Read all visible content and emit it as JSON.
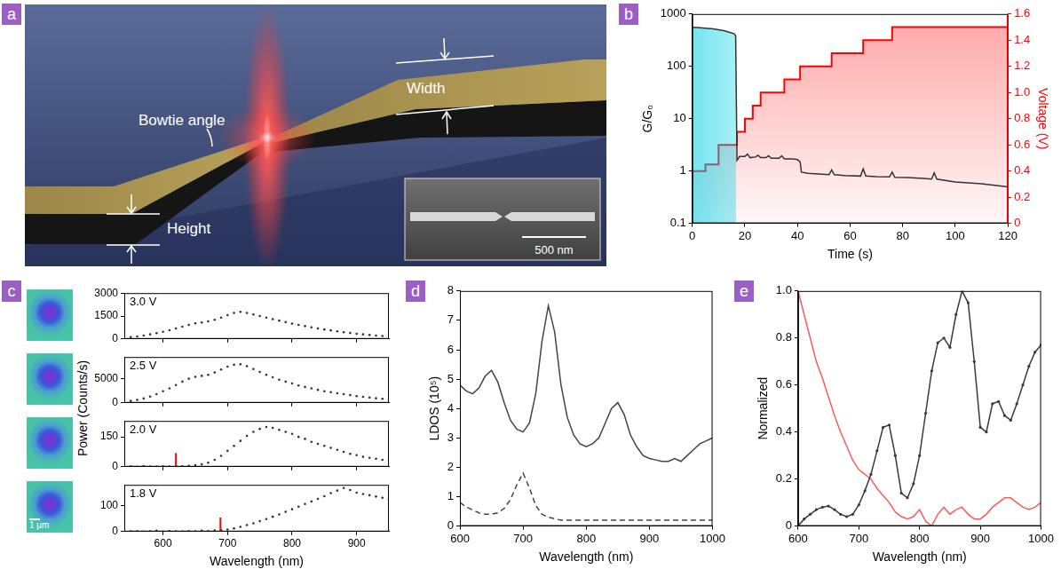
{
  "diagram": {
    "panel": "a",
    "labels": {
      "bowtie_angle": "Bowtie angle",
      "width": "Width",
      "height": "Height"
    },
    "inset_scale_bar": "500 nm"
  },
  "images": {
    "panel": "c",
    "scale_bar": "1 μm"
  },
  "chart_data": [
    {
      "panel": "b",
      "type": "line",
      "x_label": "Time (s)",
      "y_label": "G/G₀",
      "y2_label": "Voltage (V)",
      "log": "y",
      "grid": false,
      "xlim": [
        0,
        120
      ],
      "xticks": [
        0,
        20,
        40,
        60,
        80,
        100,
        120
      ],
      "ylim": [
        0.1,
        1000
      ],
      "yticks": [
        0.1,
        1,
        10,
        100,
        1000
      ],
      "y2lim": [
        0,
        1.6
      ],
      "y2ticks": [
        0,
        0.2,
        0.4,
        0.6,
        0.8,
        {
          "value": 1,
          "label": "1.0"
        },
        1.2,
        1.4,
        1.6
      ],
      "series": [
        {
          "color": "#333333",
          "x": [
            0,
            2,
            4,
            6,
            8,
            10,
            12,
            14,
            16,
            16.5,
            17,
            18,
            20,
            21,
            22,
            24,
            25,
            26,
            28,
            29,
            30,
            33,
            34,
            35,
            38,
            40,
            41,
            41.5,
            44,
            48,
            52,
            53,
            54,
            58,
            64,
            65,
            66,
            70,
            75,
            76,
            77,
            82,
            88,
            91,
            92,
            93,
            100,
            110,
            120
          ],
          "values": [
            560,
            550,
            540,
            530,
            520,
            500,
            480,
            450,
            420,
            380,
            1.6,
            1.9,
            1.9,
            2.1,
            1.8,
            1.85,
            2.0,
            1.8,
            1.8,
            1.95,
            1.75,
            1.75,
            1.95,
            1.7,
            1.7,
            1.65,
            1.5,
            0.95,
            0.9,
            0.88,
            0.85,
            1.05,
            0.85,
            0.82,
            0.8,
            1.1,
            0.8,
            0.78,
            0.77,
            0.95,
            0.76,
            0.75,
            0.72,
            0.7,
            0.92,
            0.7,
            0.62,
            0.57,
            0.5
          ]
        },
        {
          "color": "#ff0000",
          "axis": "y2",
          "line_style": "step",
          "x": [
            0,
            5,
            10,
            17,
            20,
            23,
            26,
            35,
            41,
            53,
            65,
            76,
            92,
            120
          ],
          "values": [
            0.3,
            0.4,
            0.45,
            0.6,
            0.7,
            0.8,
            0.9,
            1.0,
            1.1,
            1.2,
            1.3,
            1.4,
            1.5,
            1.5
          ]
        }
      ]
    },
    {
      "panel": "c",
      "type": "scatter",
      "marker": "dot",
      "title": "3.0 V",
      "y_label": "Power (Counts/s)",
      "tick_labels": "y",
      "grid": false,
      "xlim": [
        540,
        950
      ],
      "xticks": [
        600,
        700,
        800,
        900
      ],
      "ylim": [
        0,
        3000
      ],
      "yticks": [
        0,
        1500,
        3000
      ],
      "x": [
        550,
        560,
        570,
        580,
        590,
        600,
        610,
        620,
        630,
        640,
        650,
        660,
        670,
        680,
        690,
        700,
        710,
        720,
        730,
        740,
        750,
        760,
        770,
        780,
        790,
        800,
        810,
        820,
        830,
        840,
        850,
        860,
        870,
        880,
        890,
        900,
        910,
        920,
        930,
        940,
        950
      ],
      "series": [
        {
          "color": "#333333",
          "values": [
            120,
            160,
            220,
            300,
            380,
            470,
            570,
            680,
            800,
            920,
            1020,
            1080,
            1150,
            1250,
            1400,
            1560,
            1700,
            1780,
            1700,
            1600,
            1500,
            1400,
            1300,
            1200,
            1100,
            1000,
            920,
            840,
            760,
            680,
            620,
            560,
            500,
            440,
            390,
            340,
            300,
            260,
            220,
            190,
            160
          ]
        }
      ]
    },
    {
      "panel": "c",
      "type": "scatter",
      "marker": "dot",
      "title": "2.5 V",
      "tick_labels": "y",
      "grid": false,
      "xlim": [
        540,
        950
      ],
      "xticks": [
        600,
        700,
        800,
        900
      ],
      "ylim": [
        0,
        9500
      ],
      "yticks": [
        0,
        5000
      ],
      "x": [
        550,
        560,
        570,
        580,
        590,
        600,
        610,
        620,
        630,
        640,
        650,
        660,
        670,
        680,
        690,
        700,
        710,
        720,
        730,
        740,
        750,
        760,
        770,
        780,
        790,
        800,
        810,
        820,
        830,
        840,
        850,
        860,
        870,
        880,
        890,
        900,
        910,
        920,
        930,
        940,
        950
      ],
      "series": [
        {
          "color": "#333333",
          "values": [
            400,
            600,
            900,
            1300,
            1800,
            2400,
            3000,
            3700,
            4400,
            5000,
            5400,
            5600,
            5800,
            6300,
            6900,
            7500,
            7900,
            8000,
            7600,
            7000,
            6400,
            5800,
            5300,
            4800,
            4400,
            4000,
            3600,
            3300,
            3000,
            2700,
            2400,
            2200,
            2000,
            1800,
            1600,
            1400,
            1250,
            1100,
            950,
            850,
            750
          ]
        }
      ]
    },
    {
      "panel": "c",
      "type": "scatter",
      "marker": "dot",
      "title": "2.0 V",
      "tick_labels": "y",
      "grid": false,
      "cutoff_x": 620,
      "xlim": [
        540,
        950
      ],
      "xticks": [
        600,
        700,
        800,
        900
      ],
      "ylim": [
        0,
        230
      ],
      "yticks": [
        0,
        150
      ],
      "x": [
        550,
        560,
        570,
        580,
        590,
        600,
        610,
        620,
        630,
        640,
        650,
        660,
        670,
        680,
        690,
        700,
        710,
        720,
        730,
        740,
        750,
        760,
        770,
        780,
        790,
        800,
        810,
        820,
        830,
        840,
        850,
        860,
        870,
        880,
        890,
        900,
        910,
        920,
        930,
        940,
        950
      ],
      "series": [
        {
          "color": "#333333",
          "values": [
            2,
            0,
            3,
            1,
            0,
            2,
            1,
            3,
            2,
            5,
            8,
            12,
            20,
            35,
            55,
            80,
            105,
            130,
            155,
            175,
            190,
            200,
            195,
            185,
            175,
            165,
            150,
            140,
            125,
            115,
            105,
            95,
            85,
            75,
            65,
            58,
            50,
            45,
            40,
            35,
            30
          ]
        }
      ]
    },
    {
      "panel": "c",
      "type": "scatter",
      "marker": "dot",
      "title": "1.8 V",
      "x_label": "Wavelength (nm)",
      "grid": false,
      "cutoff_x": 689,
      "xlim": [
        540,
        950
      ],
      "xticks": [
        600,
        700,
        800,
        900
      ],
      "ylim": [
        0,
        180
      ],
      "yticks": [
        0,
        100
      ],
      "x": [
        550,
        560,
        570,
        580,
        590,
        600,
        610,
        620,
        630,
        640,
        650,
        660,
        670,
        680,
        690,
        700,
        710,
        720,
        730,
        740,
        750,
        760,
        770,
        780,
        790,
        800,
        810,
        820,
        830,
        840,
        850,
        860,
        870,
        880,
        890,
        900,
        910,
        920,
        930,
        940,
        950
      ],
      "series": [
        {
          "color": "#333333",
          "values": [
            1,
            2,
            0,
            1,
            3,
            0,
            2,
            1,
            0,
            2,
            1,
            3,
            2,
            4,
            5,
            8,
            12,
            18,
            25,
            32,
            40,
            48,
            57,
            66,
            76,
            86,
            96,
            106,
            116,
            126,
            136,
            148,
            158,
            168,
            160,
            150,
            145,
            140,
            135,
            130,
            125
          ]
        }
      ]
    },
    {
      "panel": "d",
      "type": "line",
      "x_label": "Wavelength (nm)",
      "y_label": "LDOS (10⁵)",
      "grid": false,
      "xlim": [
        600,
        1000
      ],
      "xticks": [
        600,
        700,
        800,
        900,
        1000
      ],
      "ylim": [
        0,
        8
      ],
      "yticks": [
        0,
        1,
        2,
        3,
        4,
        5,
        6,
        7,
        8
      ],
      "x": [
        600,
        610,
        620,
        630,
        640,
        650,
        660,
        670,
        680,
        690,
        700,
        710,
        720,
        730,
        740,
        750,
        760,
        770,
        780,
        790,
        800,
        810,
        820,
        830,
        840,
        850,
        860,
        870,
        880,
        890,
        900,
        910,
        920,
        930,
        940,
        950,
        960,
        970,
        980,
        990,
        1000
      ],
      "series": [
        {
          "color": "#444444",
          "values": [
            4.8,
            4.6,
            4.5,
            4.7,
            5.1,
            5.3,
            4.9,
            4.2,
            3.6,
            3.3,
            3.2,
            3.5,
            4.5,
            6.3,
            7.5,
            6.6,
            4.8,
            3.7,
            3.1,
            2.8,
            2.7,
            2.8,
            3.0,
            3.5,
            4.0,
            4.2,
            3.8,
            3.1,
            2.7,
            2.4,
            2.3,
            2.25,
            2.2,
            2.2,
            2.3,
            2.2,
            2.4,
            2.6,
            2.8,
            2.9,
            3.0
          ]
        },
        {
          "color": "#444444",
          "line_style": "dashed",
          "values": [
            0.8,
            0.65,
            0.55,
            0.45,
            0.4,
            0.4,
            0.45,
            0.6,
            0.9,
            1.4,
            1.8,
            1.3,
            0.7,
            0.4,
            0.3,
            0.25,
            0.2,
            0.2,
            0.2,
            0.2,
            0.2,
            0.2,
            0.2,
            0.2,
            0.2,
            0.2,
            0.2,
            0.2,
            0.2,
            0.2,
            0.2,
            0.2,
            0.2,
            0.2,
            0.2,
            0.2,
            0.2,
            0.2,
            0.2,
            0.2,
            0.2
          ]
        }
      ]
    },
    {
      "panel": "e",
      "type": "line",
      "x_label": "Wavelength (nm)",
      "y_label": "Normalized",
      "grid": false,
      "xlim": [
        600,
        1000
      ],
      "xticks": [
        600,
        700,
        800,
        900,
        1000
      ],
      "ylim": [
        0,
        1
      ],
      "yticks": [
        0,
        0.2,
        0.4,
        0.6,
        0.8,
        {
          "value": 1,
          "label": "1.0"
        }
      ],
      "x": [
        600,
        610,
        620,
        630,
        640,
        650,
        660,
        670,
        680,
        690,
        700,
        710,
        720,
        730,
        740,
        750,
        760,
        770,
        780,
        790,
        800,
        810,
        820,
        830,
        840,
        850,
        860,
        870,
        880,
        890,
        900,
        910,
        920,
        930,
        940,
        950,
        960,
        970,
        980,
        990,
        1000
      ],
      "series": [
        {
          "color": "#3a3a3a",
          "marker": "dot",
          "values": [
            0,
            0.03,
            0.05,
            0.07,
            0.08,
            0.085,
            0.07,
            0.05,
            0.04,
            0.05,
            0.09,
            0.15,
            0.22,
            0.32,
            0.42,
            0.43,
            0.3,
            0.14,
            0.12,
            0.18,
            0.3,
            0.48,
            0.66,
            0.78,
            0.8,
            0.76,
            0.9,
            1.0,
            0.95,
            0.7,
            0.42,
            0.4,
            0.52,
            0.53,
            0.47,
            0.45,
            0.52,
            0.6,
            0.68,
            0.74,
            0.77
          ]
        },
        {
          "color": "#ff5a5a",
          "values": [
            1.0,
            0.9,
            0.8,
            0.7,
            0.63,
            0.55,
            0.47,
            0.4,
            0.34,
            0.28,
            0.24,
            0.22,
            0.2,
            0.16,
            0.13,
            0.1,
            0.06,
            0.04,
            0.03,
            0.04,
            0.07,
            0.02,
            0.0,
            0.05,
            0.08,
            0.05,
            0.07,
            0.08,
            0.05,
            0.03,
            0.03,
            0.05,
            0.08,
            0.1,
            0.12,
            0.12,
            0.1,
            0.08,
            0.07,
            0.08,
            0.1
          ]
        }
      ]
    }
  ]
}
